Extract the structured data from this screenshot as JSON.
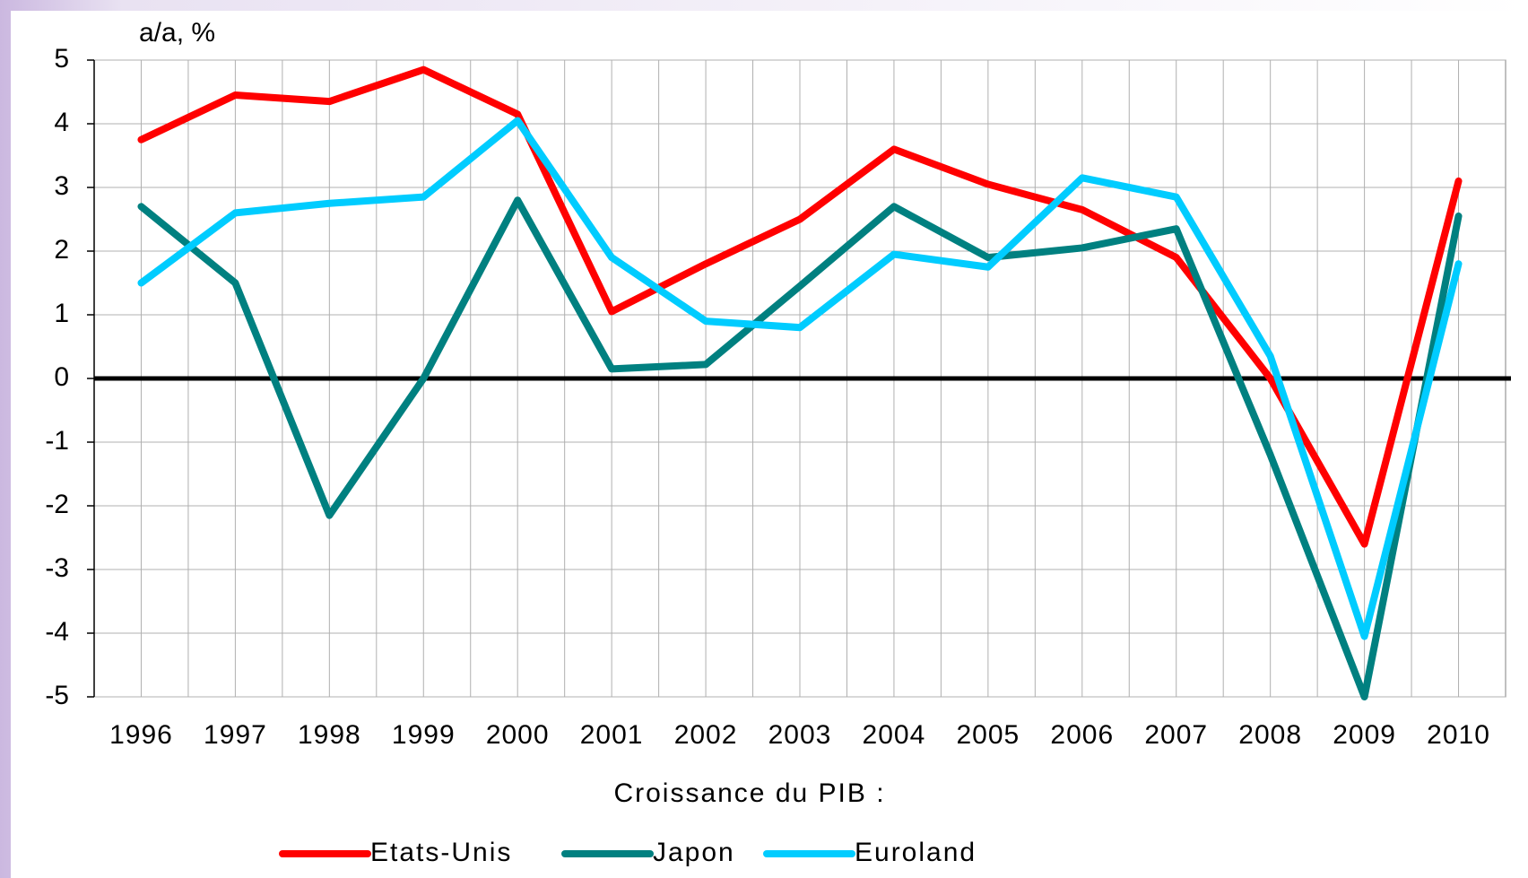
{
  "chart_data": {
    "type": "line",
    "y_label": "a/a, %",
    "x_label": "Croissance du PIB :",
    "categories": [
      "1996",
      "1997",
      "1998",
      "1999",
      "2000",
      "2001",
      "2002",
      "2003",
      "2004",
      "2005",
      "2006",
      "2007",
      "2008",
      "2009",
      "2010"
    ],
    "series": [
      {
        "name": "Etats-Unis",
        "color": "#ff0000",
        "values": [
          3.75,
          4.45,
          4.35,
          4.85,
          4.15,
          1.05,
          1.8,
          2.5,
          3.6,
          3.05,
          2.65,
          1.9,
          0.0,
          -2.6,
          3.1
        ]
      },
      {
        "name": "Japon",
        "color": "#008080",
        "values": [
          2.7,
          1.5,
          -2.15,
          0.0,
          2.8,
          0.15,
          0.22,
          1.45,
          2.7,
          1.9,
          2.05,
          2.35,
          -1.2,
          -5.0,
          2.55
        ]
      },
      {
        "name": "Euroland",
        "color": "#00ccff",
        "values": [
          1.5,
          2.6,
          2.75,
          2.85,
          4.05,
          1.9,
          0.9,
          0.8,
          1.95,
          1.75,
          3.15,
          2.85,
          0.35,
          -4.05,
          1.8
        ]
      }
    ],
    "ylim": [
      -5,
      5
    ],
    "yticks": [
      -5,
      -4,
      -3,
      -2,
      -1,
      0,
      1,
      2,
      3,
      4,
      5
    ],
    "grid": true,
    "legend": "bottom"
  }
}
